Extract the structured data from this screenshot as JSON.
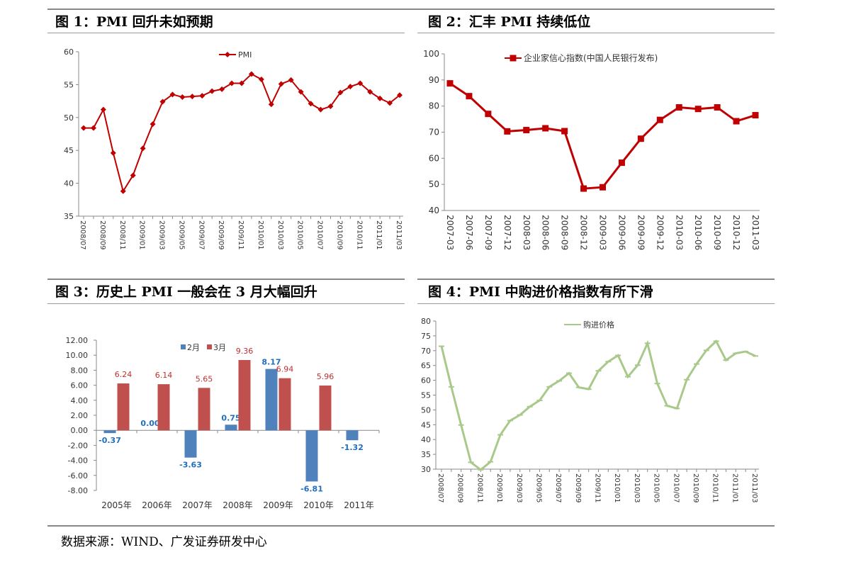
{
  "footer": {
    "source": "数据来源：WIND、广发证券研发中心"
  },
  "panels": [
    {
      "title": "图  1：PMI 回升未如预期",
      "color": "#c00000",
      "chart_data": {
        "type": "line",
        "series": [
          {
            "name": "PMI"
          }
        ],
        "x_labels": [
          "2008/07",
          "2008/09",
          "2008/11",
          "2009/01",
          "2009/03",
          "2009/05",
          "2009/07",
          "2009/09",
          "2009/11",
          "2010/01",
          "2010/03",
          "2010/05",
          "2010/07",
          "2010/09",
          "2010/11",
          "2011/01",
          "2011/03"
        ],
        "x": [
          "2008/07",
          "2008/08",
          "2008/09",
          "2008/10",
          "2008/11",
          "2008/12",
          "2009/01",
          "2009/02",
          "2009/03",
          "2009/04",
          "2009/05",
          "2009/06",
          "2009/07",
          "2009/08",
          "2009/09",
          "2009/10",
          "2009/11",
          "2009/12",
          "2010/01",
          "2010/02",
          "2010/03",
          "2010/04",
          "2010/05",
          "2010/06",
          "2010/07",
          "2010/08",
          "2010/09",
          "2010/10",
          "2010/11",
          "2010/12",
          "2011/01",
          "2011/02",
          "2011/03"
        ],
        "values": [
          48.4,
          48.4,
          51.2,
          44.6,
          38.8,
          41.2,
          45.3,
          49.0,
          52.4,
          53.5,
          53.1,
          53.2,
          53.3,
          54.0,
          54.3,
          55.2,
          55.2,
          56.6,
          55.8,
          52.0,
          55.1,
          55.7,
          53.9,
          52.1,
          51.2,
          51.7,
          53.8,
          54.7,
          55.2,
          53.9,
          52.9,
          52.2,
          53.4
        ],
        "y_ticks": [
          35,
          40,
          45,
          50,
          55,
          60
        ],
        "ylim": [
          35,
          60
        ],
        "marker": "diamond",
        "legend": "top-center"
      }
    },
    {
      "title": "图  2：汇丰 PMI 持续低位",
      "color": "#c00000",
      "chart_data": {
        "type": "line",
        "series": [
          {
            "name": "企业家信心指数(中国人民银行发布)"
          }
        ],
        "x": [
          "2007-03",
          "2007-06",
          "2007-09",
          "2007-12",
          "2008-03",
          "2008-06",
          "2008-09",
          "2008-12",
          "2009-03",
          "2009-06",
          "2009-09",
          "2009-12",
          "2010-03",
          "2010-06",
          "2010-09",
          "2010-12",
          "2011-03"
        ],
        "x_labels": [
          "2007-03",
          "2007-06",
          "2007-09",
          "2007-12",
          "2008-03",
          "2008-06",
          "2008-09",
          "2008-12",
          "2009-03",
          "2009-06",
          "2009-09",
          "2009-12",
          "2010-03",
          "2010-06",
          "2010-09",
          "2010-12",
          "2011-03"
        ],
        "values": [
          88.7,
          83.8,
          77.0,
          70.3,
          70.8,
          71.5,
          70.4,
          48.4,
          48.9,
          58.3,
          67.5,
          74.7,
          79.5,
          78.9,
          79.5,
          74.2,
          76.5
        ],
        "y_ticks": [
          40,
          50,
          60,
          70,
          80,
          90,
          100
        ],
        "ylim": [
          40,
          100
        ],
        "marker": "square",
        "legend": "top-left"
      }
    },
    {
      "title": "图  3：历史上 PMI 一般会在 3 月大幅回升",
      "colors": {
        "feb": "#4f81bd",
        "mar": "#c0504d"
      },
      "chart_data": {
        "type": "bar",
        "categories": [
          "2005年",
          "2006年",
          "2007年",
          "2008年",
          "2009年",
          "2010年",
          "2011年"
        ],
        "series": [
          {
            "name": "2月",
            "values": [
              -0.37,
              0.0,
              -3.63,
              0.75,
              8.17,
              -6.81,
              -1.32
            ],
            "labels": [
              "-0.37",
              "0.00",
              "-3.63",
              "0.75",
              "8.17",
              "-6.81",
              "-1.32"
            ]
          },
          {
            "name": "3月",
            "values": [
              6.24,
              6.14,
              5.65,
              9.36,
              6.94,
              5.96,
              null
            ],
            "labels": [
              "6.24",
              "6.14",
              "5.65",
              "9.36",
              "6.94",
              "5.96",
              ""
            ]
          }
        ],
        "y_ticks": [
          "-8.00",
          "-6.00",
          "-4.00",
          "-2.00",
          "0.00",
          "2.00",
          "4.00",
          "6.00",
          "8.00",
          "10.00",
          "12.00"
        ],
        "ylim": [
          -8,
          12
        ],
        "legend": "top-center"
      }
    },
    {
      "title": "图  4：PMI 中购进价格指数有所下滑",
      "color": "#a9c98a",
      "chart_data": {
        "type": "line",
        "series": [
          {
            "name": "购进价格"
          }
        ],
        "x_labels": [
          "2008/07",
          "2008/09",
          "2008/11",
          "2009/01",
          "2009/03",
          "2009/05",
          "2009/07",
          "2009/09",
          "2009/11",
          "2010/01",
          "2010/03",
          "2010/05",
          "2010/07",
          "2010/09",
          "2010/11",
          "2011/01",
          "2011/03"
        ],
        "x": [
          "2008/07",
          "2008/08",
          "2008/09",
          "2008/10",
          "2008/11",
          "2008/12",
          "2009/01",
          "2009/02",
          "2009/03",
          "2009/04",
          "2009/05",
          "2009/06",
          "2009/07",
          "2009/08",
          "2009/09",
          "2009/10",
          "2009/11",
          "2009/12",
          "2010/01",
          "2010/02",
          "2010/03",
          "2010/04",
          "2010/05",
          "2010/06",
          "2010/07",
          "2010/08",
          "2010/09",
          "2010/10",
          "2010/11",
          "2010/12",
          "2011/01",
          "2011/02",
          "2011/03"
        ],
        "values": [
          71.5,
          57.8,
          44.9,
          32.3,
          29.8,
          32.5,
          41.6,
          46.4,
          48.3,
          51.1,
          53.2,
          57.8,
          59.8,
          62.4,
          57.6,
          57.0,
          63.2,
          66.3,
          68.4,
          61.2,
          65.1,
          72.5,
          58.9,
          51.4,
          50.5,
          60.2,
          65.5,
          70.1,
          73.2,
          66.8,
          69.1,
          69.7,
          68.2
        ],
        "y_ticks": [
          30,
          35,
          40,
          45,
          50,
          55,
          60,
          65,
          70,
          75,
          80
        ],
        "ylim": [
          30,
          80
        ],
        "marker": "dash",
        "legend": "top-center"
      }
    }
  ]
}
